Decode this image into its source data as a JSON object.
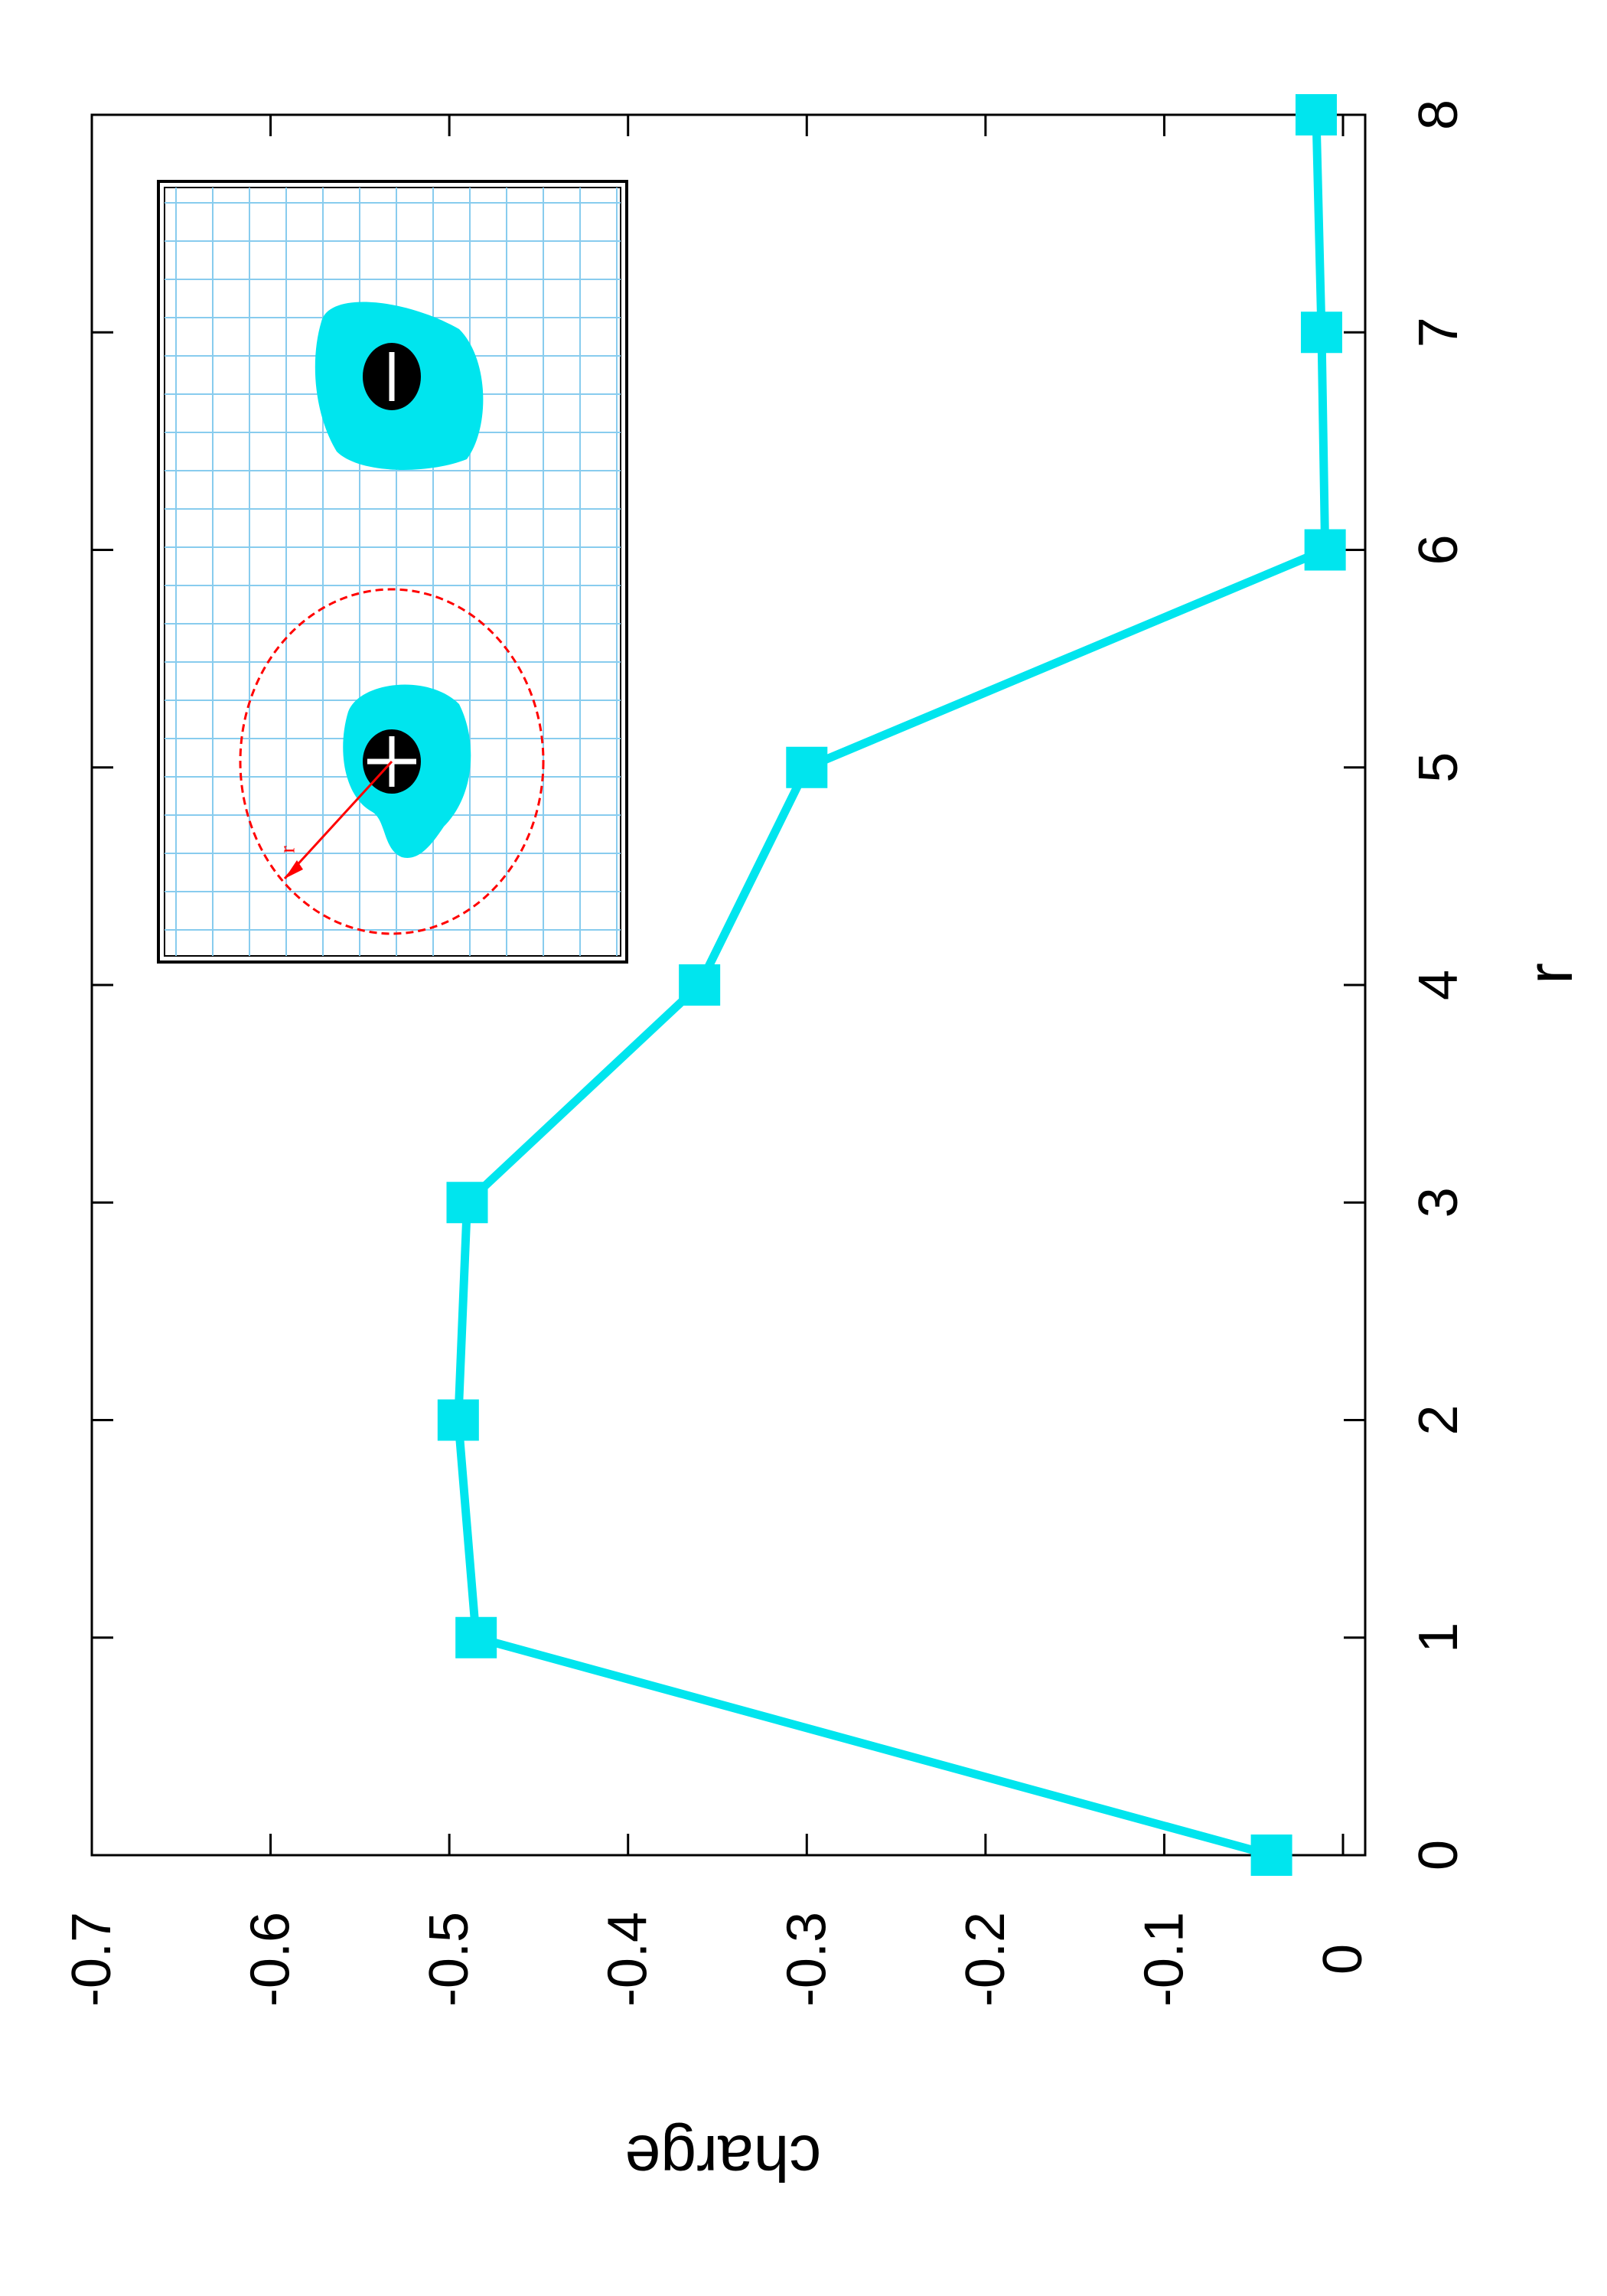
{
  "chart_data": {
    "type": "line",
    "orientation": "rotated-90-clockwise",
    "xlabel": "r",
    "ylabel": "charge",
    "xlim": [
      0,
      8
    ],
    "ylim": [
      -0.7,
      0
    ],
    "y_reversed": true,
    "x_ticks": [
      "0",
      "1",
      "2",
      "3",
      "4",
      "5",
      "6",
      "7",
      "8"
    ],
    "y_ticks": [
      "-0.7",
      "-0.6",
      "-0.5",
      "-0.4",
      "-0.3",
      "-0.2",
      "-0.1",
      "0"
    ],
    "grid": false,
    "legend": "none",
    "series": [
      {
        "color": "#00e5ee",
        "marker": "square",
        "x": [
          0,
          1,
          2,
          3,
          4,
          5,
          6,
          7,
          8
        ],
        "y": [
          -0.04,
          -0.485,
          -0.495,
          -0.49,
          -0.36,
          -0.3,
          -0.01,
          -0.012,
          -0.015
        ]
      }
    ],
    "inset": {
      "description_visible_labels": [
        "r"
      ],
      "positive_charge_symbol": "+",
      "negative_charge_symbol": "−",
      "blob_color": "#00e5ee",
      "circle_color": "#ff0000",
      "grid_color": "#88ccee"
    }
  }
}
